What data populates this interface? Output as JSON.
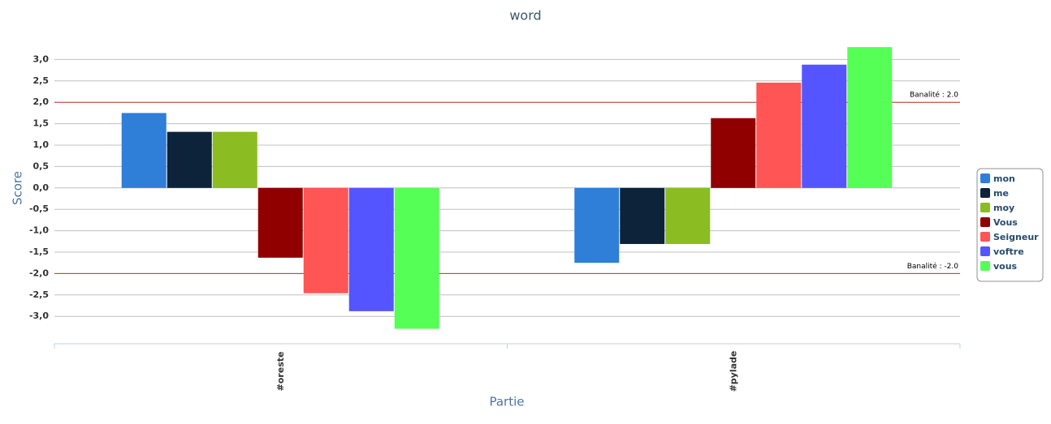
{
  "chart_data": {
    "type": "bar",
    "title": "word",
    "x_label": "Partie",
    "y_label": "Score",
    "categories": [
      "#oreste",
      "#pylade"
    ],
    "series": [
      {
        "name": "mon",
        "color": "#2f7ed8",
        "values": [
          1.75,
          -1.75
        ]
      },
      {
        "name": "me",
        "color": "#0d233a",
        "values": [
          1.31,
          -1.31
        ]
      },
      {
        "name": "moy",
        "color": "#8bbc21",
        "values": [
          1.31,
          -1.31
        ]
      },
      {
        "name": "Vous",
        "color": "#910000",
        "values": [
          -1.63,
          1.63
        ]
      },
      {
        "name": "Seigneur",
        "color": "#ff5555",
        "values": [
          -2.46,
          2.46
        ]
      },
      {
        "name": "voftre",
        "color": "#5555ff",
        "values": [
          -2.88,
          2.88
        ]
      },
      {
        "name": "vous",
        "color": "#55ff55",
        "values": [
          -3.29,
          3.29
        ]
      }
    ],
    "ylim": [
      -3.64,
      3.5
    ],
    "yticks": [
      {
        "value": -3,
        "label": "-3,0"
      },
      {
        "value": -2.5,
        "label": "-2,5"
      },
      {
        "value": -2,
        "label": "-2,0"
      },
      {
        "value": -1.5,
        "label": "-1,5"
      },
      {
        "value": -1,
        "label": "-1,0"
      },
      {
        "value": -0.5,
        "label": "-0,5"
      },
      {
        "value": 0,
        "label": "0,0"
      },
      {
        "value": 0.5,
        "label": "0,5"
      },
      {
        "value": 1,
        "label": "1,0"
      },
      {
        "value": 1.5,
        "label": "1,5"
      },
      {
        "value": 2,
        "label": "2,0"
      },
      {
        "value": 2.5,
        "label": "2,5"
      },
      {
        "value": 3,
        "label": "3,0"
      }
    ],
    "grid": true,
    "reference_lines": [
      {
        "value": 2,
        "label": "Banalité : 2.0",
        "color": "#cc3333"
      },
      {
        "value": -2,
        "label": "Banalité : -2.0",
        "color": "#cc3333"
      }
    ],
    "legend": "right"
  }
}
